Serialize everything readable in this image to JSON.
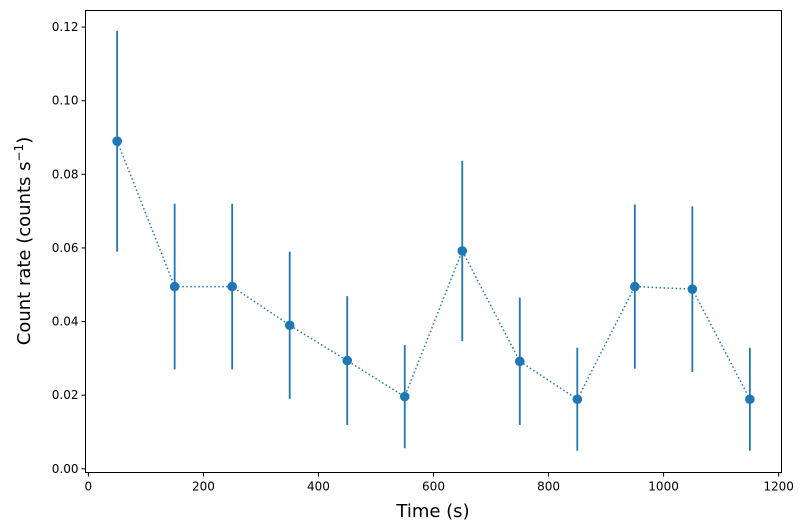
{
  "chart_data": {
    "type": "scatter",
    "title": "",
    "xlabel": "Time (s)",
    "ylabel_main": "Count rate (counts s",
    "ylabel_sup": "−1",
    "ylabel_close": ")",
    "xlim": [
      -5,
      1205
    ],
    "ylim": [
      -0.001,
      0.1245
    ],
    "xticks": [
      0,
      200,
      400,
      600,
      800,
      1000,
      1200
    ],
    "xtick_labels": [
      "0",
      "200",
      "400",
      "600",
      "800",
      "1000",
      "1200"
    ],
    "yticks": [
      0,
      0.02,
      0.04,
      0.06,
      0.08,
      0.1,
      0.12
    ],
    "ytick_labels": [
      "0.00",
      "0.02",
      "0.04",
      "0.06",
      "0.08",
      "0.10",
      "0.12"
    ],
    "grid": false,
    "color": "#1f77b4",
    "line_style": "dotted",
    "x": [
      50,
      150,
      250,
      350,
      450,
      550,
      650,
      750,
      850,
      950,
      1050,
      1150
    ],
    "y": [
      0.089,
      0.0495,
      0.0495,
      0.039,
      0.0294,
      0.0196,
      0.0592,
      0.0292,
      0.0189,
      0.0495,
      0.0488,
      0.0189
    ],
    "yerr": [
      0.03,
      0.0225,
      0.0225,
      0.02,
      0.0175,
      0.014,
      0.0245,
      0.0173,
      0.014,
      0.0223,
      0.0225,
      0.014
    ]
  }
}
